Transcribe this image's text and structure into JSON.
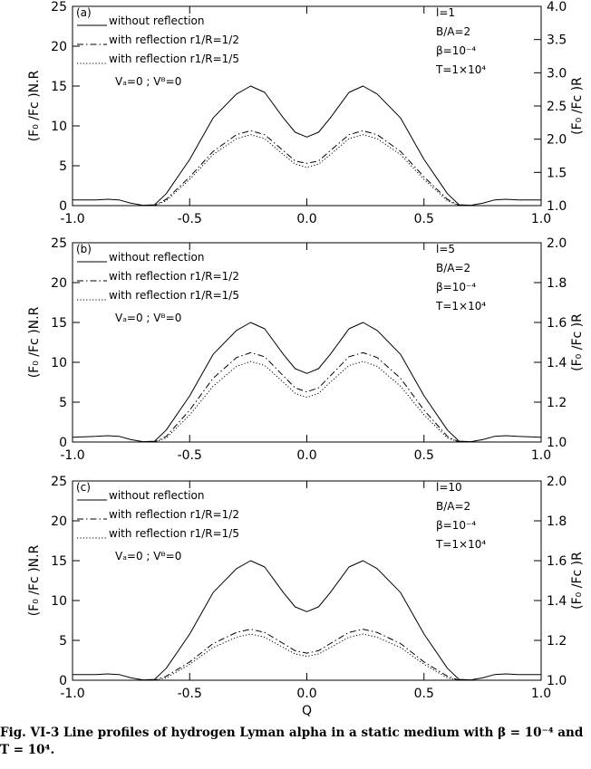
{
  "chart_data": [
    {
      "type": "line",
      "panel_label": "(a)",
      "xlim": [
        -1.0,
        1.0
      ],
      "ylim": [
        0,
        25
      ],
      "y2lim": [
        1.0,
        4.0
      ],
      "xticks": [
        "-1.0",
        "-0.5",
        "0.0",
        "0.5",
        "1.0"
      ],
      "yticks": [
        "0",
        "5",
        "10",
        "15",
        "20",
        "25"
      ],
      "y2ticks": [
        "1.0",
        "1.5",
        "2.0",
        "2.5",
        "3.0",
        "3.5",
        "4.0"
      ],
      "xlabel": "",
      "ylabel": "(F₀ /Fᴄ )N.R",
      "y2label": "(F₀ /Fᴄ )R",
      "legend": [
        "without reflection",
        "with reflection r1/R=1/2",
        "with reflection r1/R=1/5"
      ],
      "velocity_note": "Vₐ=0 ; Vᴮ=0",
      "params": [
        "l=1",
        "B/A=2",
        "β=10⁻⁴",
        "T=1×10⁴"
      ],
      "x": [
        -1.0,
        -0.9,
        -0.85,
        -0.8,
        -0.75,
        -0.7,
        -0.65,
        -0.6,
        -0.5,
        -0.4,
        -0.3,
        -0.24,
        -0.18,
        -0.1,
        -0.05,
        0.0,
        0.05,
        0.1,
        0.18,
        0.24,
        0.3,
        0.4,
        0.5,
        0.6,
        0.65,
        0.7,
        0.75,
        0.8,
        0.85,
        0.9,
        1.0
      ],
      "series": [
        {
          "name": "without reflection",
          "style": "solid",
          "values": [
            0.7,
            0.7,
            0.8,
            0.7,
            0.3,
            0.05,
            0.1,
            1.5,
            5.8,
            11.0,
            14.0,
            15.0,
            14.2,
            11.0,
            9.2,
            8.6,
            9.2,
            11.0,
            14.2,
            15.0,
            14.0,
            11.0,
            5.8,
            1.5,
            0.1,
            0.05,
            0.3,
            0.7,
            0.8,
            0.7,
            0.7
          ]
        },
        {
          "name": "with reflection r1/R=1/2",
          "style": "dashdot",
          "values": [
            0,
            0,
            0,
            0,
            0,
            0,
            0,
            0.8,
            3.6,
            6.8,
            8.9,
            9.4,
            8.9,
            6.9,
            5.6,
            5.3,
            5.6,
            6.9,
            8.9,
            9.4,
            8.9,
            6.8,
            3.6,
            0.8,
            0,
            0,
            0,
            0,
            0,
            0,
            0
          ]
        },
        {
          "name": "with reflection r1/R=1/5",
          "style": "dotted",
          "values": [
            0,
            0,
            0,
            0,
            0,
            0,
            0,
            0.6,
            3.3,
            6.4,
            8.4,
            8.9,
            8.4,
            6.4,
            5.2,
            4.8,
            5.2,
            6.4,
            8.4,
            8.9,
            8.4,
            6.4,
            3.3,
            0.6,
            0,
            0,
            0,
            0,
            0,
            0,
            0
          ]
        }
      ]
    },
    {
      "type": "line",
      "panel_label": "(b)",
      "xlim": [
        -1.0,
        1.0
      ],
      "ylim": [
        0,
        25
      ],
      "y2lim": [
        1.0,
        2.0
      ],
      "xticks": [
        "-1.0",
        "-0.5",
        "0.0",
        "0.5",
        "1.0"
      ],
      "yticks": [
        "0",
        "5",
        "10",
        "15",
        "20",
        "25"
      ],
      "y2ticks": [
        "1.0",
        "1.2",
        "1.4",
        "1.6",
        "1.8",
        "2.0"
      ],
      "xlabel": "",
      "ylabel": "(F₀ /Fᴄ )N.R",
      "y2label": "(F₀ /Fᴄ )R",
      "legend": [
        "without reflection",
        "with reflection r1/R=1/2",
        "with reflection r1/R=1/5"
      ],
      "velocity_note": "Vₐ=0 ; Vᴮ=0",
      "params": [
        "l=5",
        "B/A=2",
        "β=10⁻⁴",
        "T=1×10⁴"
      ],
      "x": [
        -1.0,
        -0.9,
        -0.85,
        -0.8,
        -0.75,
        -0.7,
        -0.65,
        -0.6,
        -0.5,
        -0.4,
        -0.3,
        -0.24,
        -0.18,
        -0.1,
        -0.05,
        0.0,
        0.05,
        0.1,
        0.18,
        0.24,
        0.3,
        0.4,
        0.5,
        0.6,
        0.65,
        0.7,
        0.75,
        0.8,
        0.85,
        0.9,
        1.0
      ],
      "series": [
        {
          "name": "without reflection",
          "style": "solid",
          "values": [
            0.6,
            0.7,
            0.8,
            0.7,
            0.3,
            0.05,
            0.1,
            1.5,
            5.8,
            11.0,
            14.0,
            15.0,
            14.2,
            11.0,
            9.2,
            8.6,
            9.2,
            11.0,
            14.2,
            15.0,
            14.0,
            11.0,
            5.8,
            1.5,
            0.1,
            0.05,
            0.3,
            0.7,
            0.8,
            0.7,
            0.6
          ]
        },
        {
          "name": "with reflection r1/R=1/2",
          "style": "dashdot",
          "values": [
            0,
            0,
            0,
            0,
            0,
            0,
            0,
            0.7,
            4.0,
            8.0,
            10.6,
            11.2,
            10.7,
            8.3,
            6.8,
            6.3,
            6.8,
            8.3,
            10.7,
            11.2,
            10.6,
            8.0,
            4.0,
            0.7,
            0,
            0,
            0,
            0,
            0,
            0,
            0
          ]
        },
        {
          "name": "with reflection r1/R=1/5",
          "style": "dotted",
          "values": [
            0,
            0,
            0,
            0,
            0,
            0,
            0,
            0.5,
            3.4,
            7.0,
            9.5,
            10.1,
            9.6,
            7.5,
            6.1,
            5.6,
            6.1,
            7.5,
            9.6,
            10.1,
            9.5,
            7.0,
            3.4,
            0.5,
            0,
            0,
            0,
            0,
            0,
            0,
            0
          ]
        }
      ]
    },
    {
      "type": "line",
      "panel_label": "(c)",
      "xlim": [
        -1.0,
        1.0
      ],
      "ylim": [
        0,
        25
      ],
      "y2lim": [
        1.0,
        2.0
      ],
      "xticks": [
        "-1.0",
        "-0.5",
        "0.0",
        "0.5",
        "1.0"
      ],
      "yticks": [
        "0",
        "5",
        "10",
        "15",
        "20",
        "25"
      ],
      "y2ticks": [
        "1.0",
        "1.2",
        "1.4",
        "1.6",
        "1.8",
        "2.0"
      ],
      "xlabel": "Q",
      "ylabel": "(F₀ /Fᴄ )N.R",
      "y2label": "(F₀ /Fᴄ )R",
      "legend": [
        "without reflection",
        "with reflection r1/R=1/2",
        "with reflection r1/R=1/5"
      ],
      "velocity_note": "Vₐ=0 ; Vᴮ=0",
      "params": [
        "l=10",
        "B/A=2",
        "β=10⁻⁴",
        "T=1×10⁴"
      ],
      "x": [
        -1.0,
        -0.9,
        -0.85,
        -0.8,
        -0.75,
        -0.7,
        -0.65,
        -0.6,
        -0.5,
        -0.4,
        -0.3,
        -0.24,
        -0.18,
        -0.1,
        -0.05,
        0.0,
        0.05,
        0.1,
        0.18,
        0.24,
        0.3,
        0.4,
        0.5,
        0.6,
        0.65,
        0.7,
        0.75,
        0.8,
        0.85,
        0.9,
        1.0
      ],
      "series": [
        {
          "name": "without reflection",
          "style": "solid",
          "values": [
            0.7,
            0.7,
            0.8,
            0.7,
            0.3,
            0.05,
            0.1,
            1.5,
            5.8,
            11.0,
            14.0,
            15.0,
            14.2,
            11.0,
            9.2,
            8.6,
            9.2,
            11.0,
            14.2,
            15.0,
            14.0,
            11.0,
            5.8,
            1.5,
            0.1,
            0.05,
            0.3,
            0.7,
            0.8,
            0.7,
            0.7
          ]
        },
        {
          "name": "with reflection r1/R=1/2",
          "style": "dashdot",
          "values": [
            0,
            0,
            0,
            0,
            0,
            0,
            0,
            0.5,
            2.3,
            4.6,
            6.0,
            6.4,
            6.0,
            4.6,
            3.7,
            3.4,
            3.7,
            4.6,
            6.0,
            6.4,
            6.0,
            4.6,
            2.3,
            0.5,
            0,
            0,
            0,
            0,
            0,
            0,
            0
          ]
        },
        {
          "name": "with reflection r1/R=1/5",
          "style": "dotted",
          "values": [
            0,
            0,
            0,
            0,
            0,
            0,
            0,
            0.3,
            2.0,
            4.1,
            5.4,
            5.8,
            5.4,
            4.1,
            3.3,
            3.0,
            3.3,
            4.1,
            5.4,
            5.8,
            5.4,
            4.1,
            2.0,
            0.3,
            0,
            0,
            0,
            0,
            0,
            0,
            0
          ]
        }
      ]
    }
  ],
  "caption": {
    "line1": "Fig.  VI-3 Line profiles of hydrogen Lyman alpha in a static medium with β = 10⁻⁴ and",
    "line2": "T = 10⁴."
  }
}
